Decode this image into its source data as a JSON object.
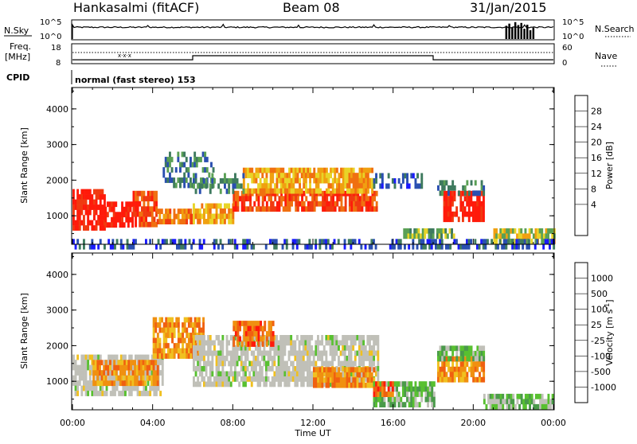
{
  "header": {
    "station": "Hankasalmi (fitACF)",
    "beam": "Beam 08",
    "date": "31/Jan/2015"
  },
  "top_panels": {
    "nsky_label": "N.Sky",
    "nsky_ticks": [
      "10^5",
      "10^0"
    ],
    "nsearch_label": "N.Search",
    "nsearch_ticks": [
      "10^5",
      "10^0"
    ],
    "freq_label_1": "Freq.",
    "freq_label_2": "[MHz]",
    "freq_ticks": [
      "18",
      "8"
    ],
    "nave_label": "Nave",
    "nave_ticks": [
      "60",
      "0"
    ],
    "cpid_label": "CPID",
    "cpid_text": "normal (fast stereo) 153"
  },
  "chart_data": [
    {
      "type": "heatmap",
      "name": "power-panel",
      "ylabel": "Slant Range [km]",
      "ylim": [
        200,
        4600
      ],
      "yticks": [
        "4000",
        "3000",
        "2000",
        "1000"
      ],
      "xlim": [
        0,
        24
      ],
      "colorbar": {
        "label": "Power [dB]",
        "ticks": [
          "28",
          "24",
          "20",
          "16",
          "12",
          "8",
          "4"
        ],
        "colors": [
          "#1a1aff",
          "#2a4fb0",
          "#3e7a5e",
          "#5aa055",
          "#e8d428",
          "#f0a010",
          "#f07010",
          "#f03a10",
          "#ff1a0a"
        ]
      },
      "echo_regions": [
        {
          "t0": 0.0,
          "t1": 1.6,
          "r0": 700,
          "r1": 1750,
          "level": 8
        },
        {
          "t0": 1.6,
          "t1": 3.0,
          "r0": 800,
          "r1": 1400,
          "level": 8
        },
        {
          "t0": 3.0,
          "t1": 4.2,
          "r0": 800,
          "r1": 1700,
          "level": 7
        },
        {
          "t0": 4.2,
          "t1": 6.0,
          "r0": 900,
          "r1": 1200,
          "level": 6
        },
        {
          "t0": 6.0,
          "t1": 8.0,
          "r0": 900,
          "r1": 1350,
          "level": 5
        },
        {
          "t0": 8.0,
          "t1": 15.2,
          "r0": 1150,
          "r1": 1700,
          "level": 7
        },
        {
          "t0": 8.5,
          "t1": 15.0,
          "r0": 1700,
          "r1": 2350,
          "level": 5
        },
        {
          "t0": 4.5,
          "t1": 7.0,
          "r0": 1800,
          "r1": 2800,
          "level": 2
        },
        {
          "t0": 6.0,
          "t1": 8.5,
          "r0": 1700,
          "r1": 2200,
          "level": 2
        },
        {
          "t0": 15.0,
          "t1": 17.5,
          "r0": 1800,
          "r1": 2200,
          "level": 1
        },
        {
          "t0": 18.5,
          "t1": 20.5,
          "r0": 900,
          "r1": 1700,
          "level": 8
        },
        {
          "t0": 18.2,
          "t1": 20.5,
          "r0": 1700,
          "r1": 2000,
          "level": 2
        },
        {
          "t0": 16.5,
          "t1": 19.0,
          "r0": 450,
          "r1": 650,
          "level": 3
        },
        {
          "t0": 21.0,
          "t1": 24.0,
          "r0": 350,
          "r1": 650,
          "level": 4
        },
        {
          "t0": 0.0,
          "t1": 24.0,
          "r0": 200,
          "r1": 350,
          "level": 1
        }
      ]
    },
    {
      "type": "heatmap",
      "name": "velocity-panel",
      "ylabel": "Slant Range [km]",
      "ylim": [
        200,
        4600
      ],
      "yticks": [
        "4000",
        "3000",
        "2000",
        "1000"
      ],
      "xlim": [
        0,
        24
      ],
      "xticks": [
        "00:00",
        "04:00",
        "08:00",
        "12:00",
        "16:00",
        "20:00",
        "00:00"
      ],
      "xlabel": "Time UT",
      "colorbar": {
        "label": "Velocity [m s-1]",
        "ticks": [
          "1000",
          "500",
          "100",
          "25",
          "-25",
          "-100",
          "-500",
          "-1000"
        ],
        "colors": [
          "#2a4ab8",
          "#3e6a5a",
          "#4a9a4a",
          "#58c030",
          "#c0c0b8",
          "#f0c020",
          "#f09010",
          "#f06010",
          "#ff1a0a"
        ]
      },
      "echo_regions": [
        {
          "t0": 0.0,
          "t1": 4.5,
          "r0": 600,
          "r1": 1750,
          "level": 4
        },
        {
          "t0": 1.0,
          "t1": 4.3,
          "r0": 1000,
          "r1": 1600,
          "level": 6
        },
        {
          "t0": 4.0,
          "t1": 6.5,
          "r0": 1700,
          "r1": 2800,
          "level": 6
        },
        {
          "t0": 6.0,
          "t1": 15.2,
          "r0": 950,
          "r1": 2300,
          "level": 4
        },
        {
          "t0": 8.0,
          "t1": 10.0,
          "r0": 2000,
          "r1": 2700,
          "level": 7
        },
        {
          "t0": 12.0,
          "t1": 15.0,
          "r0": 900,
          "r1": 1400,
          "level": 6
        },
        {
          "t0": 15.0,
          "t1": 18.0,
          "r0": 400,
          "r1": 1000,
          "level": 3
        },
        {
          "t0": 18.2,
          "t1": 20.5,
          "r0": 1000,
          "r1": 1700,
          "level": 6
        },
        {
          "t0": 18.2,
          "t1": 20.5,
          "r0": 1700,
          "r1": 2000,
          "level": 3
        },
        {
          "t0": 20.5,
          "t1": 24.0,
          "r0": 350,
          "r1": 650,
          "level": 3
        },
        {
          "t0": 15.0,
          "t1": 16.0,
          "r0": 700,
          "r1": 1000,
          "level": 7
        }
      ]
    }
  ],
  "nsky_series": {
    "baseline_log": 3.2
  },
  "nsearch_bars": [
    {
      "t": 21.6,
      "v": 3.6
    },
    {
      "t": 21.75,
      "v": 4.2
    },
    {
      "t": 21.9,
      "v": 3.2
    },
    {
      "t": 22.05,
      "v": 4.6
    },
    {
      "t": 22.2,
      "v": 3.8
    },
    {
      "t": 22.35,
      "v": 4.4
    },
    {
      "t": 22.5,
      "v": 2.8
    },
    {
      "t": 22.65,
      "v": 3.9
    },
    {
      "t": 22.8,
      "v": 2.4
    },
    {
      "t": 22.95,
      "v": 3.1
    }
  ],
  "freq_series": [
    {
      "t": 0,
      "f": 9.7
    },
    {
      "t": 6.0,
      "f": 9.7
    },
    {
      "t": 6.0,
      "f": 11.9
    },
    {
      "t": 18.0,
      "f": 11.9
    },
    {
      "t": 18.0,
      "f": 9.7
    },
    {
      "t": 24.0,
      "f": 9.7
    }
  ],
  "nave_level": 34
}
